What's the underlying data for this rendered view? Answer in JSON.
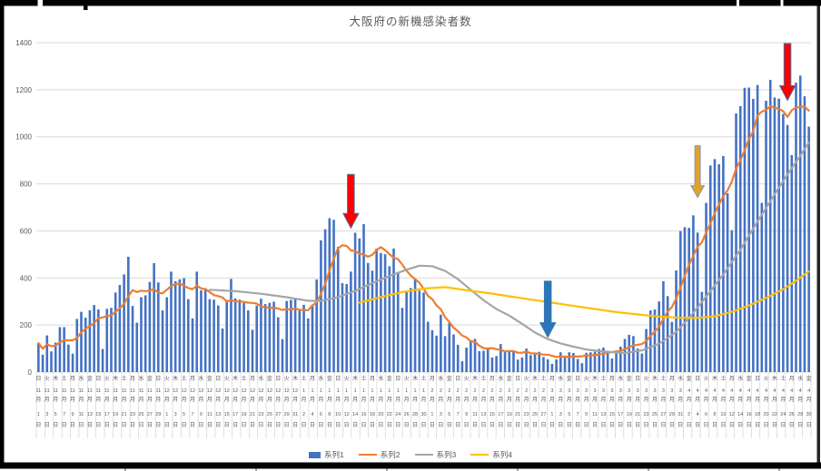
{
  "window": {
    "frame_color": "#000000",
    "right_edge_color": "#262626",
    "tick_color": "#A6A6A6",
    "background": "#FFFFFF"
  },
  "chart": {
    "title": "大阪府の新機感染者数",
    "title_color": "#595959",
    "gridline_color": "#D9D9D9",
    "axis_label_color": "#595959",
    "legend": [
      {
        "label": "系列1",
        "marker": "rect",
        "color": "#4472C4"
      },
      {
        "label": "系列2",
        "marker": "line",
        "color": "#ED7D31"
      },
      {
        "label": "系列3",
        "marker": "line",
        "color": "#A5A5A5"
      },
      {
        "label": "系列4",
        "marker": "line",
        "color": "#FFC000"
      }
    ]
  },
  "chart_data": {
    "type": "bar",
    "title": "大阪府の新機感染者数",
    "ylim": [
      0,
      1400
    ],
    "y_ticks": [
      0,
      200,
      400,
      600,
      800,
      1000,
      1200,
      1400
    ],
    "grid": true,
    "legend_position": "bottom",
    "n_points": 181,
    "x_start_date": "2020-11-01",
    "x_end_date": "2021-04-30",
    "x_label_suffixes": {
      "month": "月",
      "day": "日"
    },
    "x_label_months": [
      {
        "m": "11",
        "days": [
          [
            1,
            "日"
          ],
          [
            3,
            "火"
          ],
          [
            5,
            "木"
          ],
          [
            7,
            "土"
          ],
          [
            9,
            "月"
          ],
          [
            11,
            "水"
          ],
          [
            13,
            "金"
          ],
          [
            15,
            "日"
          ],
          [
            17,
            "火"
          ],
          [
            19,
            "木"
          ],
          [
            21,
            "土"
          ],
          [
            23,
            "月"
          ],
          [
            25,
            "水"
          ],
          [
            27,
            "金"
          ],
          [
            29,
            "日"
          ]
        ]
      },
      {
        "m": "12",
        "days": [
          [
            1,
            "火"
          ],
          [
            3,
            "木"
          ],
          [
            5,
            "土"
          ],
          [
            7,
            "月"
          ],
          [
            9,
            "水"
          ],
          [
            11,
            "金"
          ],
          [
            13,
            "日"
          ],
          [
            15,
            "火"
          ],
          [
            17,
            "木"
          ],
          [
            19,
            "土"
          ],
          [
            21,
            "月"
          ],
          [
            23,
            "水"
          ],
          [
            25,
            "金"
          ],
          [
            27,
            "日"
          ],
          [
            29,
            "火"
          ],
          [
            31,
            "木"
          ]
        ]
      },
      {
        "m": "1",
        "days": [
          [
            2,
            "土"
          ],
          [
            4,
            "月"
          ],
          [
            6,
            "水"
          ],
          [
            8,
            "金"
          ],
          [
            10,
            "日"
          ],
          [
            12,
            "火"
          ],
          [
            14,
            "木"
          ],
          [
            16,
            "土"
          ],
          [
            18,
            "月"
          ],
          [
            20,
            "水"
          ],
          [
            22,
            "金"
          ],
          [
            24,
            "日"
          ],
          [
            26,
            "火"
          ],
          [
            28,
            "木"
          ],
          [
            30,
            "土"
          ]
        ]
      },
      {
        "m": "2",
        "days": [
          [
            1,
            "月"
          ],
          [
            3,
            "水"
          ],
          [
            5,
            "金"
          ],
          [
            7,
            "日"
          ],
          [
            9,
            "火"
          ],
          [
            11,
            "木"
          ],
          [
            13,
            "土"
          ],
          [
            15,
            "月"
          ],
          [
            17,
            "水"
          ],
          [
            19,
            "金"
          ],
          [
            21,
            "日"
          ],
          [
            23,
            "火"
          ],
          [
            25,
            "木"
          ],
          [
            27,
            "土"
          ]
        ]
      },
      {
        "m": "3",
        "days": [
          [
            1,
            "月"
          ],
          [
            3,
            "水"
          ],
          [
            5,
            "金"
          ],
          [
            7,
            "日"
          ],
          [
            9,
            "火"
          ],
          [
            11,
            "木"
          ],
          [
            13,
            "土"
          ],
          [
            15,
            "月"
          ],
          [
            17,
            "水"
          ],
          [
            19,
            "金"
          ],
          [
            21,
            "日"
          ],
          [
            23,
            "火"
          ],
          [
            25,
            "木"
          ],
          [
            27,
            "土"
          ],
          [
            29,
            "月"
          ],
          [
            31,
            "水"
          ]
        ]
      },
      {
        "m": "4",
        "days": [
          [
            2,
            "金"
          ],
          [
            4,
            "日"
          ],
          [
            6,
            "火"
          ],
          [
            8,
            "木"
          ],
          [
            10,
            "土"
          ],
          [
            12,
            "月"
          ],
          [
            14,
            "水"
          ],
          [
            16,
            "金"
          ],
          [
            18,
            "日"
          ],
          [
            20,
            "火"
          ],
          [
            22,
            "木"
          ],
          [
            24,
            "土"
          ],
          [
            26,
            "月"
          ],
          [
            28,
            "水"
          ],
          [
            30,
            "金"
          ]
        ]
      }
    ],
    "series": [
      {
        "name": "系列1",
        "type": "bar",
        "color": "#4472C4",
        "values": [
          123,
          74,
          156,
          88,
          125,
          191,
          191,
          117,
          78,
          226,
          256,
          231,
          263,
          285,
          266,
          98,
          269,
          273,
          338,
          370,
          415,
          490,
          281,
          210,
          318,
          326,
          383,
          463,
          381,
          262,
          318,
          427,
          386,
          394,
          399,
          310,
          228,
          427,
          348,
          357,
          310,
          308,
          283,
          185,
          306,
          396,
          313,
          308,
          294,
          262,
          180,
          283,
          312,
          289,
          294,
          299,
          233,
          140,
          302,
          307,
          313,
          262,
          286,
          228,
          286,
          394,
          560,
          607,
          654,
          647,
          532,
          378,
          374,
          427,
          592,
          568,
          629,
          464,
          431,
          525,
          506,
          501,
          450,
          525,
          421,
          273,
          343,
          357,
          397,
          346,
          338,
          214,
          178,
          155,
          244,
          153,
          209,
          160,
          116,
          46,
          104,
          130,
          141,
          89,
          91,
          98,
          62,
          68,
          119,
          91,
          91,
          92,
          53,
          62,
          100,
          72,
          82,
          86,
          64,
          54,
          35,
          54,
          84,
          70,
          84,
          81,
          56,
          38,
          82,
          84,
          86,
          98,
          104,
          84,
          58,
          92,
          108,
          141,
          158,
          153,
          100,
          79,
          183,
          262,
          266,
          300,
          386,
          323,
          213,
          432,
          599,
          616,
          613,
          666,
          593,
          341,
          719,
          878,
          905,
          883,
          918,
          760,
          603,
          1099,
          1130,
          1208,
          1209,
          1161,
          1220,
          719,
          1153,
          1242,
          1167,
          1162,
          1097,
          1050,
          922,
          1230,
          1260,
          1172,
          1043
        ]
      },
      {
        "name": "系列2",
        "type": "line",
        "color": "#ED7D31",
        "values": [
          123,
          99,
          118,
          110,
          113,
          126,
          135,
          135,
          135,
          145,
          169,
          184,
          195,
          208,
          229,
          232,
          238,
          241,
          256,
          271,
          290,
          322,
          348,
          340,
          346,
          344,
          346,
          353,
          337,
          335,
          350,
          366,
          374,
          376,
          367,
          357,
          352,
          367,
          356,
          352,
          340,
          327,
          323,
          317,
          300,
          306,
          300,
          300,
          298,
          295,
          294,
          291,
          279,
          275,
          273,
          274,
          270,
          264,
          267,
          266,
          270,
          265,
          263,
          263,
          283,
          297,
          333,
          375,
          431,
          482,
          526,
          539,
          536,
          517,
          515,
          503,
          500,
          490,
          498,
          519,
          531,
          518,
          501,
          486,
          480,
          457,
          431,
          410,
          395,
          380,
          354,
          324,
          310,
          284,
          267,
          233,
          213,
          188,
          174,
          155,
          147,
          131,
          129,
          112,
          102,
          100,
          102,
          97,
          95,
          88,
          89,
          89,
          82,
          82,
          87,
          80,
          79,
          78,
          74,
          74,
          70,
          64,
          66,
          64,
          64,
          66,
          66,
          67,
          71,
          71,
          73,
          75,
          78,
          82,
          85,
          87,
          90,
          98,
          106,
          113,
          116,
          119,
          132,
          154,
          172,
          192,
          225,
          257,
          276,
          312,
          360,
          410,
          455,
          495,
          533,
          551,
          592,
          632,
          674,
          712,
          748,
          772,
          809,
          864,
          900,
          943,
          990,
          1024,
          1090,
          1107,
          1114,
          1130,
          1124,
          1118,
          1109,
          1084,
          1113,
          1124,
          1127,
          1128,
          1111
        ]
      },
      {
        "name": "系列3",
        "type": "line",
        "color": "#A5A5A5",
        "points": [
          [
            40,
            350
          ],
          [
            46,
            344
          ],
          [
            52,
            333
          ],
          [
            58,
            318
          ],
          [
            63,
            303
          ],
          [
            66,
            302
          ],
          [
            70,
            318
          ],
          [
            74,
            345
          ],
          [
            78,
            378
          ],
          [
            82,
            408
          ],
          [
            86,
            435
          ],
          [
            89,
            452
          ],
          [
            92,
            450
          ],
          [
            95,
            430
          ],
          [
            98,
            395
          ],
          [
            101,
            350
          ],
          [
            104,
            305
          ],
          [
            107,
            268
          ],
          [
            110,
            240
          ],
          [
            113,
            205
          ],
          [
            116,
            168
          ],
          [
            119,
            140
          ],
          [
            122,
            122
          ],
          [
            125,
            108
          ],
          [
            128,
            96
          ],
          [
            131,
            89
          ],
          [
            134,
            85
          ],
          [
            137,
            81
          ],
          [
            141,
            92
          ],
          [
            145,
            120
          ],
          [
            149,
            170
          ],
          [
            152,
            230
          ],
          [
            156,
            320
          ],
          [
            160,
            415
          ],
          [
            164,
            520
          ],
          [
            168,
            640
          ],
          [
            172,
            755
          ],
          [
            175,
            840
          ],
          [
            178,
            920
          ],
          [
            180,
            975
          ]
        ]
      },
      {
        "name": "系列4",
        "type": "line",
        "color": "#FFC000",
        "points": [
          [
            75,
            295
          ],
          [
            80,
            318
          ],
          [
            85,
            340
          ],
          [
            90,
            355
          ],
          [
            95,
            361
          ],
          [
            100,
            348
          ],
          [
            105,
            336
          ],
          [
            110,
            322
          ],
          [
            115,
            308
          ],
          [
            120,
            295
          ],
          [
            125,
            281
          ],
          [
            130,
            268
          ],
          [
            135,
            255
          ],
          [
            140,
            245
          ],
          [
            145,
            236
          ],
          [
            150,
            231
          ],
          [
            154,
            230
          ],
          [
            158,
            237
          ],
          [
            162,
            256
          ],
          [
            166,
            283
          ],
          [
            170,
            315
          ],
          [
            174,
            352
          ],
          [
            177,
            388
          ],
          [
            180,
            428
          ]
        ]
      }
    ],
    "annotations": [
      {
        "name": "red-arrow-january-peak",
        "x_index": 73,
        "value_from": 840,
        "value_to": 612,
        "fill": "#FF0000",
        "stroke": "#41719C",
        "size": "l"
      },
      {
        "name": "blue-arrow-february-bottom",
        "x_index": 119,
        "value_from": 386,
        "value_to": 148,
        "fill": "#2E75B6",
        "stroke": "#2E75B6",
        "size": "l"
      },
      {
        "name": "yellow-arrow-april-rise",
        "x_index": 154,
        "value_from": 962,
        "value_to": 742,
        "fill": "#DFA32A",
        "stroke": "#8497B0",
        "size": "s"
      },
      {
        "name": "red-arrow-april-peak",
        "x_index": 175,
        "value_from": 1396,
        "value_to": 1155,
        "fill": "#FF0000",
        "stroke": "#41719C",
        "size": "l"
      }
    ]
  }
}
